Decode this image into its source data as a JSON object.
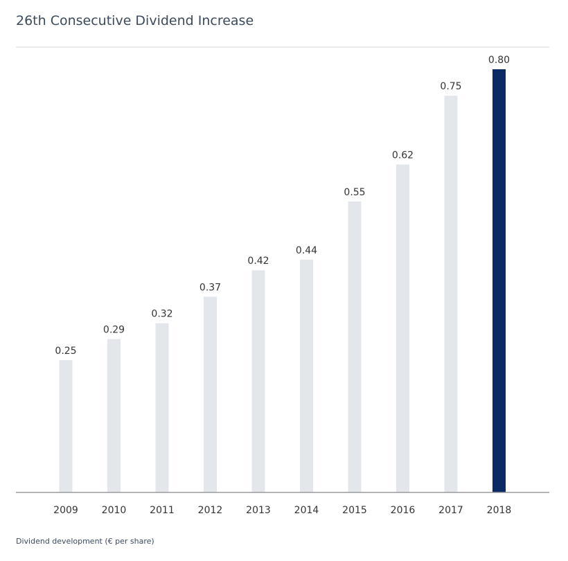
{
  "chart_data": {
    "type": "bar",
    "title": "26th Consecutive Dividend Increase",
    "footnote": "Dividend development (€ per share)",
    "categories": [
      "2009",
      "2010",
      "2011",
      "2012",
      "2013",
      "2014",
      "2015",
      "2016",
      "2017",
      "2018"
    ],
    "values": [
      0.25,
      0.29,
      0.32,
      0.37,
      0.42,
      0.44,
      0.55,
      0.62,
      0.75,
      0.8
    ],
    "value_labels": [
      "0.25",
      "0.29",
      "0.32",
      "0.37",
      "0.42",
      "0.44",
      "0.55",
      "0.62",
      "0.75",
      "0.80"
    ],
    "ylim": [
      0,
      0.8
    ],
    "grid": false,
    "colors": {
      "bar": "#e3e7eb",
      "highlight": "#0b2a63",
      "axis": "#9a9a9a",
      "top_rule": "#d3d3d3"
    },
    "highlight_category": "2018"
  }
}
